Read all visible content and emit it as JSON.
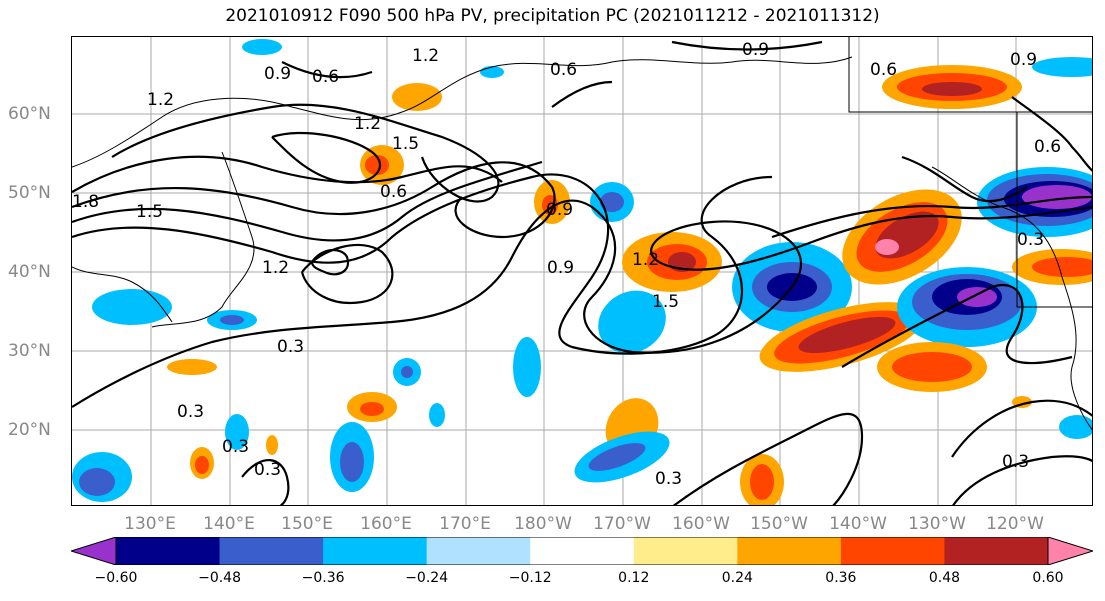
{
  "title": "2021010912 F090 500 hPa PV, precipitation PC (2021011212 - 2021011312)",
  "latitude_labels": [
    "60°N",
    "50°N",
    "40°N",
    "30°N",
    "20°N"
  ],
  "longitude_labels": [
    "130°E",
    "140°E",
    "150°E",
    "160°E",
    "170°E",
    "180°W",
    "170°W",
    "160°W",
    "150°W",
    "140°W",
    "130°W",
    "120°W"
  ],
  "contour_labels": [
    "1.2",
    "0.9",
    "0.6",
    "0.9",
    "0.6",
    "0.6",
    "0.9",
    "1.2",
    "1.2",
    "1.5",
    "0.6",
    "1.5",
    "1.8",
    "1.2",
    "0.9",
    "0.9",
    "1.2",
    "1.5",
    "0.3",
    "0.3",
    "0.3",
    "0.3",
    "0.3",
    "0.3",
    "0.6",
    "0.3"
  ],
  "colorbar": {
    "ticks": [
      "−0.60",
      "−0.48",
      "−0.36",
      "−0.24",
      "−0.12",
      "0.12",
      "0.24",
      "0.36",
      "0.48",
      "0.60"
    ],
    "colors": [
      "#9932cc",
      "#00008b",
      "#3a5fcd",
      "#00bfff",
      "#b0e2ff",
      "#ffffff",
      "#ffec8b",
      "#ffa500",
      "#ff4500",
      "#b22222",
      "#ff82ab"
    ]
  }
}
